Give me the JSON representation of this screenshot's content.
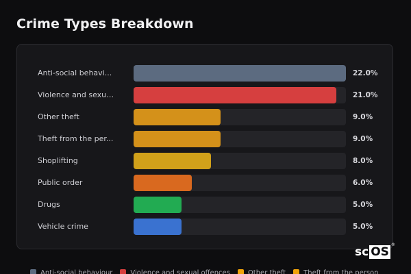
{
  "title": "Crime Types Breakdown",
  "chart_data": {
    "type": "bar",
    "orientation": "horizontal",
    "categories": [
      "Anti-social behaviour",
      "Violence and sexual offences",
      "Other theft",
      "Theft from the person",
      "Shoplifting",
      "Public order",
      "Drugs",
      "Vehicle crime"
    ],
    "display_labels": [
      "Anti-social behavi...",
      "Violence and sexua...",
      "Other theft",
      "Theft from the per...",
      "Shoplifting",
      "Public order",
      "Drugs",
      "Vehicle crime"
    ],
    "values": [
      22.0,
      21.0,
      9.0,
      9.0,
      8.0,
      6.0,
      5.0,
      5.0
    ],
    "value_labels": [
      "22.0%",
      "21.0%",
      "9.0%",
      "9.0%",
      "8.0%",
      "6.0%",
      "5.0%",
      "5.0%"
    ],
    "xlim": [
      0,
      22
    ],
    "colors": [
      "#5c6b80",
      "#d63f3f",
      "#d4911a",
      "#d4911a",
      "#d1a11a",
      "#d9691f",
      "#22ab52",
      "#3a72d0"
    ],
    "legend": {
      "placement": "bottom",
      "items": [
        {
          "label": "Anti-social behaviour",
          "color": "#5c6b80"
        },
        {
          "label": "Violence and sexual offences",
          "color": "#d63f3f"
        },
        {
          "label": "Other theft",
          "color": "#f0a30a"
        },
        {
          "label": "Theft from the person",
          "color": "#f0a30a"
        }
      ]
    }
  },
  "logo": {
    "part1": "sc",
    "part2": "OS",
    "reg": "®"
  }
}
